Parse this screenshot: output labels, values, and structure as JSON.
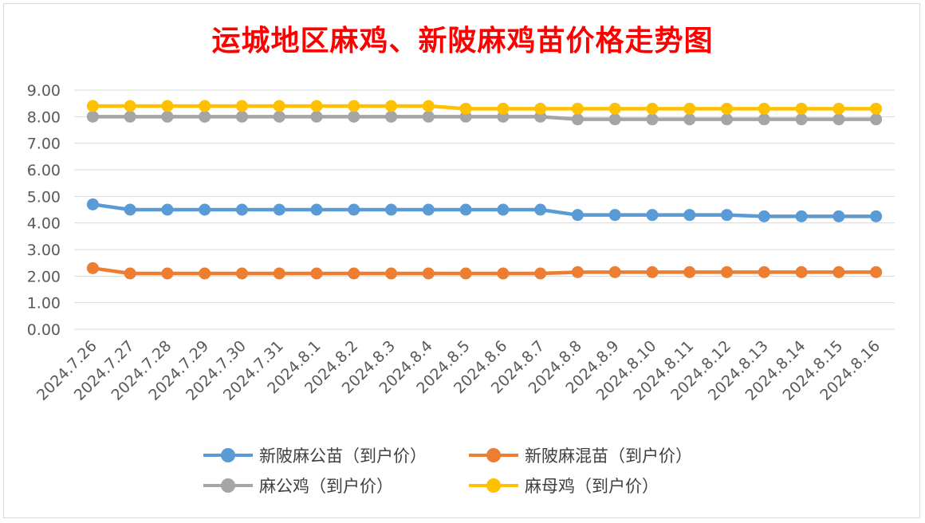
{
  "chart_data": {
    "type": "line",
    "title": "运城地区麻鸡、新陂麻鸡苗价格走势图",
    "categories": [
      "2024.7.26",
      "2024.7.27",
      "2024.7.28",
      "2024.7.29",
      "2024.7.30",
      "2024.7.31",
      "2024.8.1",
      "2024.8.2",
      "2024.8.3",
      "2024.8.4",
      "2024.8.5",
      "2024.8.6",
      "2024.8.7",
      "2024.8.8",
      "2024.8.9",
      "2024.8.10",
      "2024.8.11",
      "2024.8.12",
      "2024.8.13",
      "2024.8.14",
      "2024.8.15",
      "2024.8.16"
    ],
    "y_ticks": [
      "0.00",
      "1.00",
      "2.00",
      "3.00",
      "4.00",
      "5.00",
      "6.00",
      "7.00",
      "8.00",
      "9.00"
    ],
    "ylim": [
      0,
      9
    ],
    "grid": true,
    "legend_position": "bottom",
    "series": [
      {
        "name": "新陂麻公苗（到户价）",
        "color": "#5b9bd5",
        "values": [
          4.7,
          4.5,
          4.5,
          4.5,
          4.5,
          4.5,
          4.5,
          4.5,
          4.5,
          4.5,
          4.5,
          4.5,
          4.5,
          4.3,
          4.3,
          4.3,
          4.3,
          4.3,
          4.25,
          4.25,
          4.25,
          4.25
        ]
      },
      {
        "name": "新陂麻混苗（到户价）",
        "color": "#ed7d31",
        "values": [
          2.3,
          2.1,
          2.1,
          2.1,
          2.1,
          2.1,
          2.1,
          2.1,
          2.1,
          2.1,
          2.1,
          2.1,
          2.1,
          2.15,
          2.15,
          2.15,
          2.15,
          2.15,
          2.15,
          2.15,
          2.15,
          2.15
        ]
      },
      {
        "name": "麻公鸡（到户价）",
        "color": "#a5a5a5",
        "values": [
          8.0,
          8.0,
          8.0,
          8.0,
          8.0,
          8.0,
          8.0,
          8.0,
          8.0,
          8.0,
          8.0,
          8.0,
          8.0,
          7.9,
          7.9,
          7.9,
          7.9,
          7.9,
          7.9,
          7.9,
          7.9,
          7.9
        ]
      },
      {
        "name": "麻母鸡（到户价）",
        "color": "#ffc000",
        "values": [
          8.4,
          8.4,
          8.4,
          8.4,
          8.4,
          8.4,
          8.4,
          8.4,
          8.4,
          8.4,
          8.3,
          8.3,
          8.3,
          8.3,
          8.3,
          8.3,
          8.3,
          8.3,
          8.3,
          8.3,
          8.3,
          8.3
        ]
      }
    ]
  }
}
